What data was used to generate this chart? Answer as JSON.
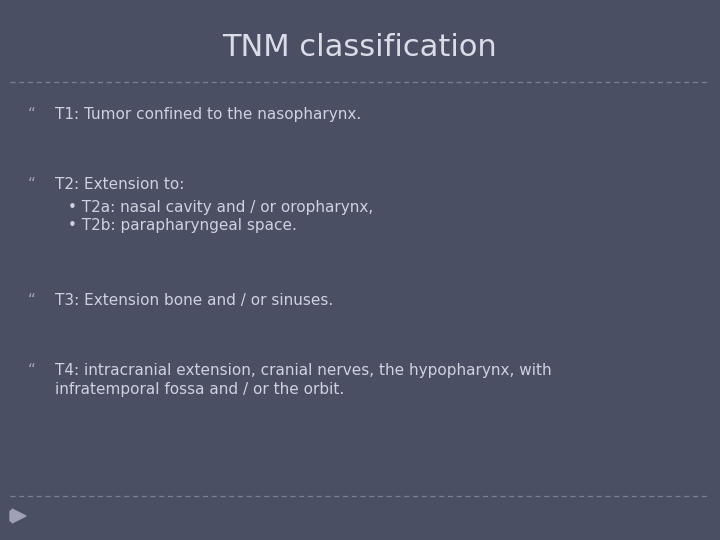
{
  "title": "TNM classification",
  "background_color": "#4a4f63",
  "title_color": "#dcdce8",
  "text_color": "#d0d0e0",
  "bullet_color": "#a0a0b8",
  "divider_color": "#7a7f93",
  "title_fontsize": 22,
  "body_fontsize": 11,
  "bullet_symbol": "“",
  "items": [
    {
      "text": "T1: Tumor confined to the nasopharynx.",
      "sub": []
    },
    {
      "text": "T2: Extension to:",
      "sub": [
        "• T2a: nasal cavity and / or oropharynx,",
        "• T2b: parapharyngeal space."
      ]
    },
    {
      "text": "T3: Extension bone and / or sinuses.",
      "sub": []
    },
    {
      "text": "T4: intracranial extension, cranial nerves, the hypopharynx, with\ninfratemporal fossa and / or the orbit.",
      "sub": []
    }
  ]
}
